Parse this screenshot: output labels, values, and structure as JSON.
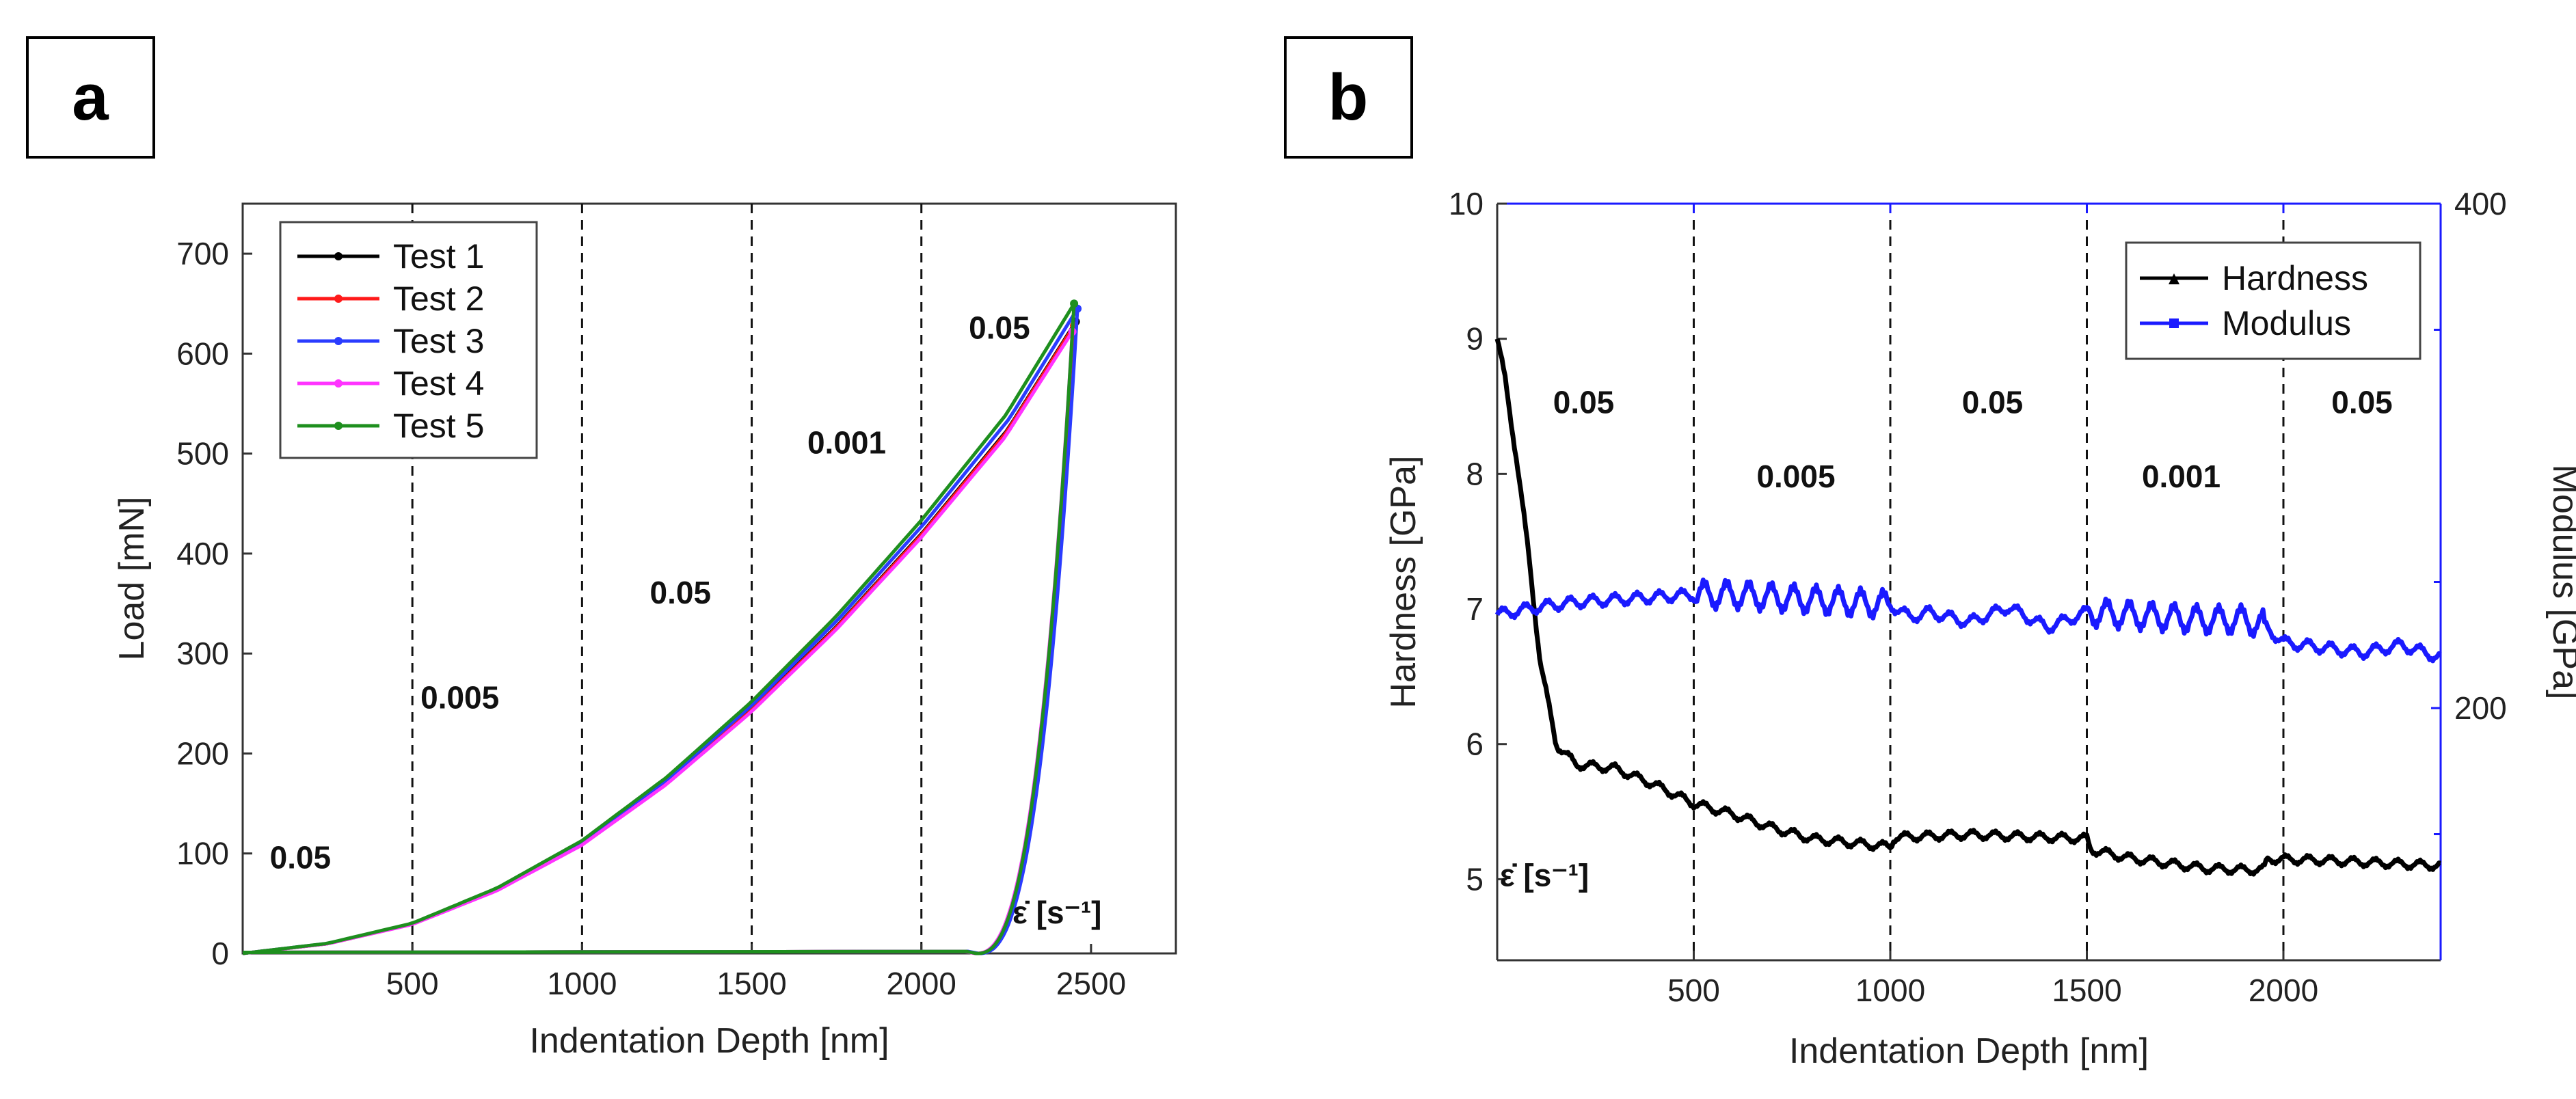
{
  "chart_data": [
    {
      "panel": "a",
      "type": "line",
      "xlabel": "Indentation Depth [nm]",
      "ylabel": "Load [mN]",
      "xlim": [
        0,
        2750
      ],
      "ylim": [
        0,
        750
      ],
      "xticks": [
        500,
        1000,
        1500,
        2000,
        2500
      ],
      "yticks": [
        0,
        100,
        200,
        300,
        400,
        500,
        600,
        700
      ],
      "vlines": [
        500,
        1000,
        1500,
        2000
      ],
      "legend_position": "top-left",
      "series": [
        {
          "name": "Test 1",
          "color": "#000000",
          "peak_depth": 2455,
          "peak_load": 632,
          "final_depth": 2165
        },
        {
          "name": "Test 2",
          "color": "#ff1a1a",
          "peak_depth": 2450,
          "peak_load": 628,
          "final_depth": 2160
        },
        {
          "name": "Test 3",
          "color": "#2a3cff",
          "peak_depth": 2460,
          "peak_load": 645,
          "final_depth": 2168
        },
        {
          "name": "Test 4",
          "color": "#ff33ff",
          "peak_depth": 2445,
          "peak_load": 622,
          "final_depth": 2158
        },
        {
          "name": "Test 5",
          "color": "#1e8f1e",
          "peak_depth": 2450,
          "peak_load": 650,
          "final_depth": 2162
        }
      ],
      "loading_curve": {
        "x": [
          0,
          250,
          500,
          750,
          1000,
          1250,
          1500,
          1750,
          2000,
          2250,
          2450
        ],
        "y": [
          0,
          10,
          30,
          65,
          112,
          175,
          250,
          335,
          430,
          535,
          645
        ]
      },
      "annotations": [
        {
          "text": "0.05",
          "x": 170,
          "y": 85
        },
        {
          "text": "0.005",
          "x": 640,
          "y": 245
        },
        {
          "text": "0.05",
          "x": 1290,
          "y": 350
        },
        {
          "text": "0.001",
          "x": 1780,
          "y": 500
        },
        {
          "text": "0.05",
          "x": 2230,
          "y": 615
        },
        {
          "text": "ε̇ [s⁻¹]",
          "x": 2400,
          "y": 30
        }
      ]
    },
    {
      "panel": "b",
      "type": "line",
      "xlabel": "Indentation Depth [nm]",
      "ylabel": "Hardness [GPa]",
      "ylabel_right": "Modulus [GPa]",
      "xlim": [
        0,
        2400
      ],
      "ylim": [
        4.4,
        10
      ],
      "ylim_right": [
        100,
        400
      ],
      "xticks": [
        500,
        1000,
        1500,
        2000
      ],
      "yticks": [
        5,
        6,
        7,
        8,
        9,
        10
      ],
      "yticks_right": [
        200,
        400
      ],
      "vlines": [
        500,
        1000,
        1500,
        2000
      ],
      "legend_position": "top-right",
      "series": [
        {
          "name": "Hardness",
          "color": "#000000",
          "axis": "left",
          "x": [
            0,
            20,
            50,
            80,
            110,
            150,
            200,
            300,
            400,
            500,
            600,
            700,
            800,
            900,
            1000,
            1010,
            1200,
            1400,
            1500,
            1510,
            1600,
            1700,
            1800,
            1900,
            1950,
            1960,
            2100,
            2250,
            2400
          ],
          "y": [
            9.0,
            8.7,
            8.1,
            7.4,
            6.6,
            6.0,
            5.85,
            5.82,
            5.7,
            5.56,
            5.48,
            5.38,
            5.3,
            5.27,
            5.24,
            5.31,
            5.33,
            5.31,
            5.3,
            5.22,
            5.16,
            5.12,
            5.08,
            5.07,
            5.07,
            5.15,
            5.14,
            5.12,
            5.1
          ]
        },
        {
          "name": "Modulus",
          "color": "#1a1aff",
          "axis": "right",
          "x": [
            0,
            100,
            200,
            300,
            400,
            500,
            600,
            700,
            800,
            900,
            1000,
            1050,
            1100,
            1200,
            1300,
            1400,
            1500,
            1600,
            1700,
            1800,
            1900,
            1950,
            2000,
            2100,
            2200,
            2300,
            2400
          ],
          "y": [
            237,
            240,
            242,
            243,
            244,
            245,
            245,
            244,
            243,
            242,
            241,
            236,
            238,
            234,
            240,
            232,
            238,
            237,
            236,
            235,
            235,
            233,
            226,
            224,
            222,
            225,
            220
          ]
        }
      ],
      "annotations": [
        {
          "text": "0.05",
          "x": 220,
          "y": 8.45
        },
        {
          "text": "0.005",
          "x": 760,
          "y": 7.9
        },
        {
          "text": "0.05",
          "x": 1260,
          "y": 8.45
        },
        {
          "text": "0.001",
          "x": 1740,
          "y": 7.9
        },
        {
          "text": "0.05",
          "x": 2200,
          "y": 8.45
        },
        {
          "text": "ε̇ [s⁻¹]",
          "x": 120,
          "y": 4.95
        }
      ]
    }
  ]
}
